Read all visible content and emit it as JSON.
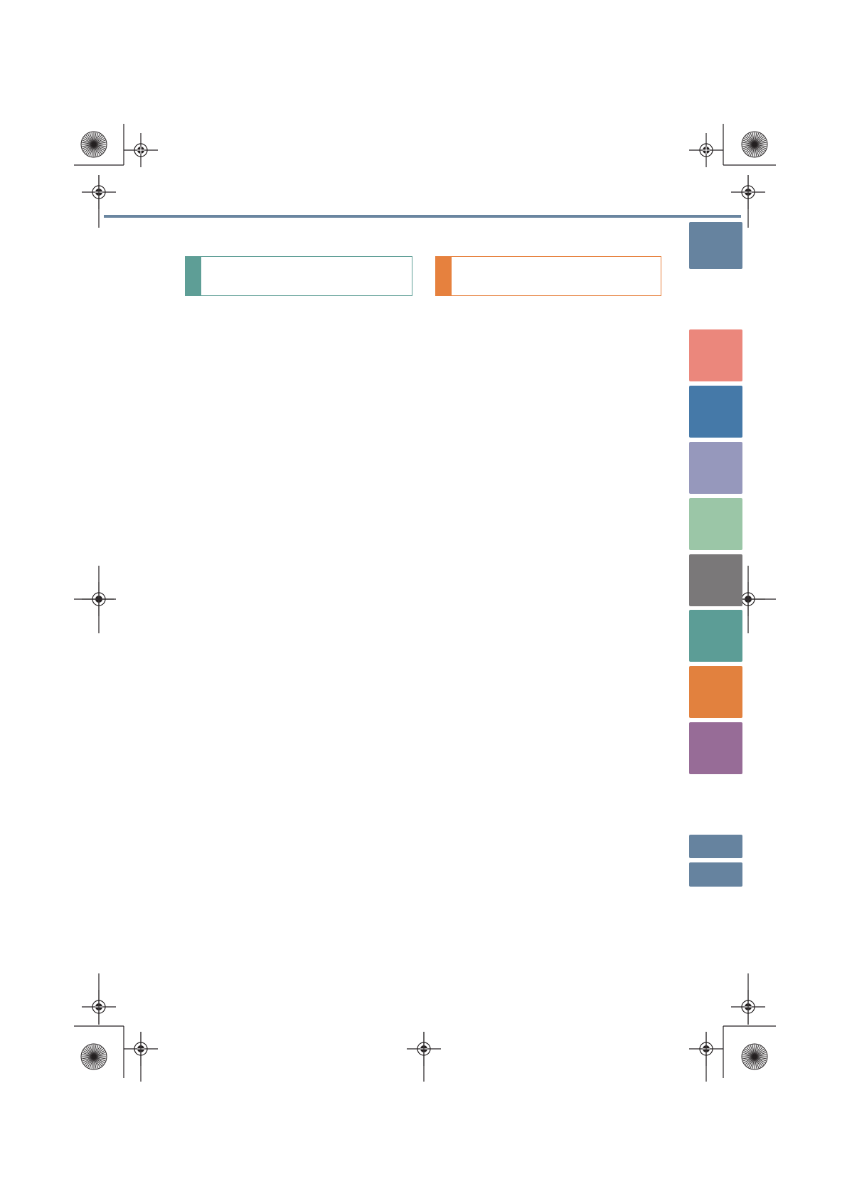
{
  "colors": {
    "header_rule": "#6a86a0",
    "box_left_accent": "#5e9e96",
    "box_right_accent": "#e6813e",
    "crop_mark": "#231f20"
  },
  "section_boxes": [
    {
      "label": "",
      "accent": "#5e9e96"
    },
    {
      "label": "",
      "accent": "#e6813e"
    }
  ],
  "tabs": [
    {
      "color": "#66839f",
      "label": ""
    },
    {
      "color": "#eb877c",
      "label": ""
    },
    {
      "color": "#4579a8",
      "label": ""
    },
    {
      "color": "#9698bc",
      "label": ""
    },
    {
      "color": "#9bc6a7",
      "label": ""
    },
    {
      "color": "#7a7879",
      "label": ""
    },
    {
      "color": "#5c9d96",
      "label": ""
    },
    {
      "color": "#e2813e",
      "label": ""
    },
    {
      "color": "#976c97",
      "label": ""
    },
    {
      "color": "#66839f",
      "label": ""
    },
    {
      "color": "#66839f",
      "label": ""
    }
  ],
  "marks": {
    "color_bars": [
      "top-left",
      "top-right",
      "bottom-left",
      "bottom-right"
    ],
    "registration_targets": [
      "top-left-inner",
      "top-left-outer",
      "top-right-inner",
      "top-right-outer",
      "middle-left",
      "middle-right",
      "bottom-left-inner",
      "bottom-left-outer",
      "bottom-center",
      "bottom-right-inner",
      "bottom-right-outer"
    ]
  }
}
